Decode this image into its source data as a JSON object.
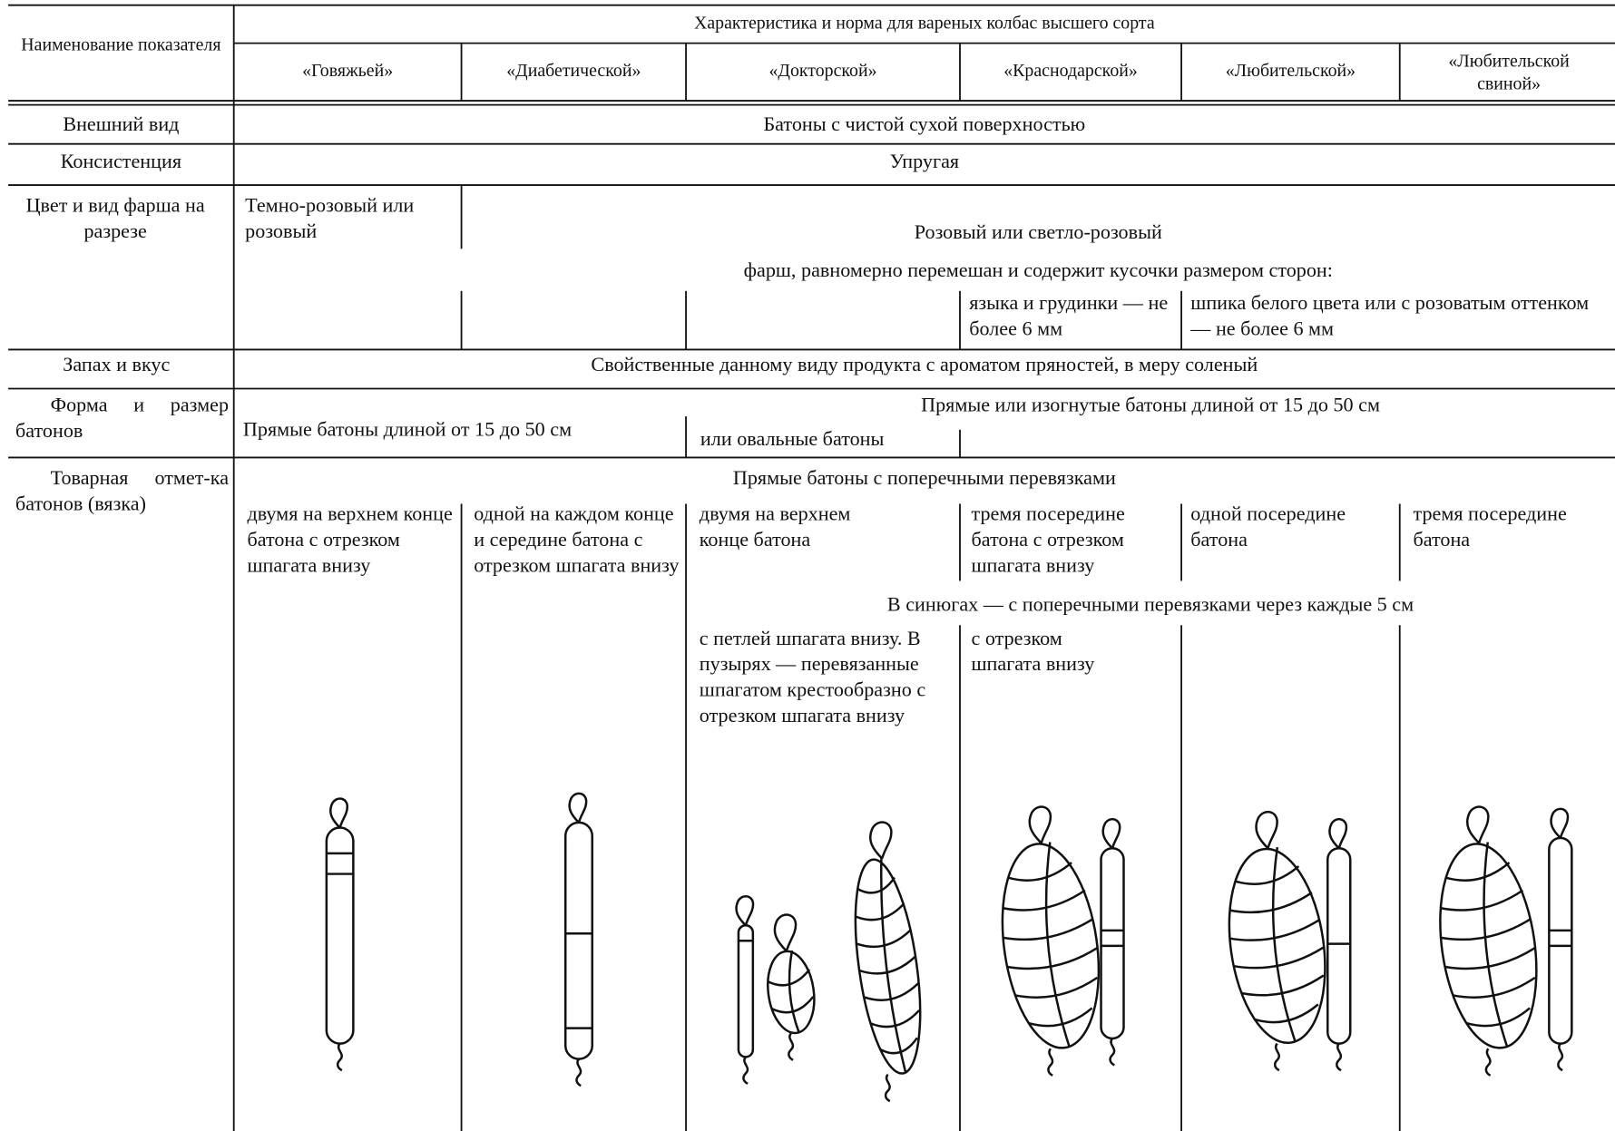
{
  "header": {
    "row_label": "Наименование показателя",
    "group_title": "Характеристика и норма для вареных колбас высшего сорта",
    "columns": [
      "«Говяжьей»",
      "«Диабетической»",
      "«Докторской»",
      "«Краснодарской»",
      "«Любительской»",
      "«Любительской свиной»"
    ]
  },
  "rows": [
    {
      "label": "Внешний вид",
      "text": "Батоны с чистой сухой поверхностью"
    },
    {
      "label": "Консистенция",
      "text": "Упругая"
    },
    {
      "label": "Цвет и вид фарша на разрезе",
      "cells": [
        "Темно-розовый или розовый",
        "Розовый или светло-розовый",
        "фарш, равномерно перемешан и содержит кусочки размером сторон:",
        "языка и грудинки — не более 6 мм",
        "шпика белого цвета или с розоватым оттенком — не более 6 мм"
      ]
    },
    {
      "label": "Запах и вкус",
      "text": "Свойственные данному виду продукта с ароматом пряностей, в меру соленый"
    },
    {
      "label": "Форма и размер батонов",
      "cells": [
        "Прямые батоны длиной от 15 до 50 см",
        "Прямые или изогнутые батоны длиной от 15 до 50 см",
        "или овальные батоны"
      ]
    },
    {
      "label": "Товарная отмет-ка батонов (вязка)",
      "cells": [
        "Прямые батоны с поперечными перевязками",
        "двумя на верхнем конце батона с отрезком шпагата внизу",
        "одной на каждом конце и середине батона с отрезком шпагата внизу",
        "двумя на верхнем конце батона",
        "тремя посередине батона с отрезком шпагата внизу",
        "одной посередине батона",
        "тремя посередине батона",
        "В синюгах — с поперечными перевязками через каждые 5 см",
        "с петлей шпагата внизу. В пузырях — перевязанные шпагатом крестообразно с отрезком шпагата внизу",
        "с отрезком шпагата внизу"
      ]
    }
  ]
}
